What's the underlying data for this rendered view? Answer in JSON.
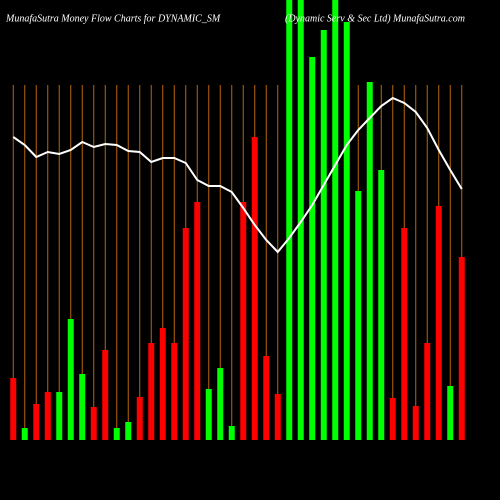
{
  "chart_data": {
    "type": "bar-line",
    "title": "MunafaSutra  Money Flow  Charts for DYNAMIC_SM",
    "subtitle": "(Dynamic Serv & Sec Ltd) MunafaSutra.com",
    "ylim": [
      0,
      440
    ],
    "grid": true,
    "grid_color": "#b8660b",
    "bars": {
      "values": [
        62,
        12,
        36,
        48,
        48,
        121,
        66,
        33,
        90,
        12,
        18,
        43,
        97,
        112,
        97,
        212,
        238,
        51,
        72,
        14,
        238,
        303,
        84,
        46,
        440,
        440,
        383,
        410,
        440,
        418,
        249,
        358,
        270,
        42,
        212,
        34,
        97,
        234,
        54,
        183
      ],
      "colors": [
        "#ff0000",
        "#00ff00",
        "#ff0000",
        "#ff0000",
        "#00ff00",
        "#00ff00",
        "#00ff00",
        "#ff0000",
        "#ff0000",
        "#00ff00",
        "#00ff00",
        "#ff0000",
        "#ff0000",
        "#ff0000",
        "#ff0000",
        "#ff0000",
        "#ff0000",
        "#00ff00",
        "#00ff00",
        "#00ff00",
        "#ff0000",
        "#ff0000",
        "#ff0000",
        "#ff0000",
        "#00ff00",
        "#00ff00",
        "#00ff00",
        "#00ff00",
        "#00ff00",
        "#00ff00",
        "#00ff00",
        "#00ff00",
        "#00ff00",
        "#ff0000",
        "#ff0000",
        "#ff0000",
        "#ff0000",
        "#ff0000",
        "#00ff00",
        "#ff0000"
      ]
    },
    "line": {
      "color": "#ffffff",
      "values": [
        303,
        295,
        283,
        288,
        286,
        290,
        298,
        293,
        296,
        295,
        289,
        288,
        278,
        282,
        282,
        277,
        260,
        254,
        254,
        248,
        232,
        215,
        200,
        188,
        202,
        218,
        235,
        255,
        275,
        295,
        310,
        322,
        334,
        342,
        337,
        328,
        312,
        290,
        270,
        251
      ]
    }
  }
}
